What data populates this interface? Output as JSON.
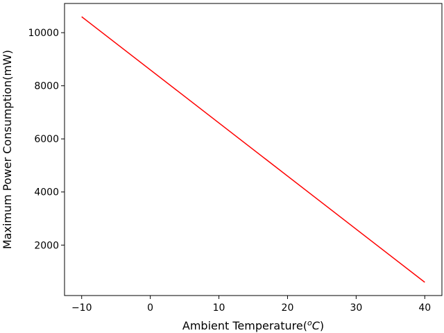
{
  "chart_data": {
    "type": "line",
    "title": "",
    "xlabel": "Ambient Temperature(",
    "xlabel_sup": "o",
    "xlabel_unit": "C",
    "xlabel_end": ")",
    "ylabel": "Maximum Power Consumption(mW)",
    "xlim": [
      -12.5,
      42.5
    ],
    "ylim": [
      100,
      11100
    ],
    "xticks": [
      -10,
      0,
      10,
      20,
      30,
      40
    ],
    "xtick_labels": [
      "−10",
      "0",
      "10",
      "20",
      "30",
      "40"
    ],
    "yticks": [
      2000,
      4000,
      6000,
      8000,
      10000
    ],
    "ytick_labels": [
      "2000",
      "4000",
      "6000",
      "8000",
      "10000"
    ],
    "grid": false,
    "series": [
      {
        "color": "#ff0000",
        "x": [
          -10,
          40
        ],
        "y": [
          10600,
          600
        ]
      }
    ]
  }
}
